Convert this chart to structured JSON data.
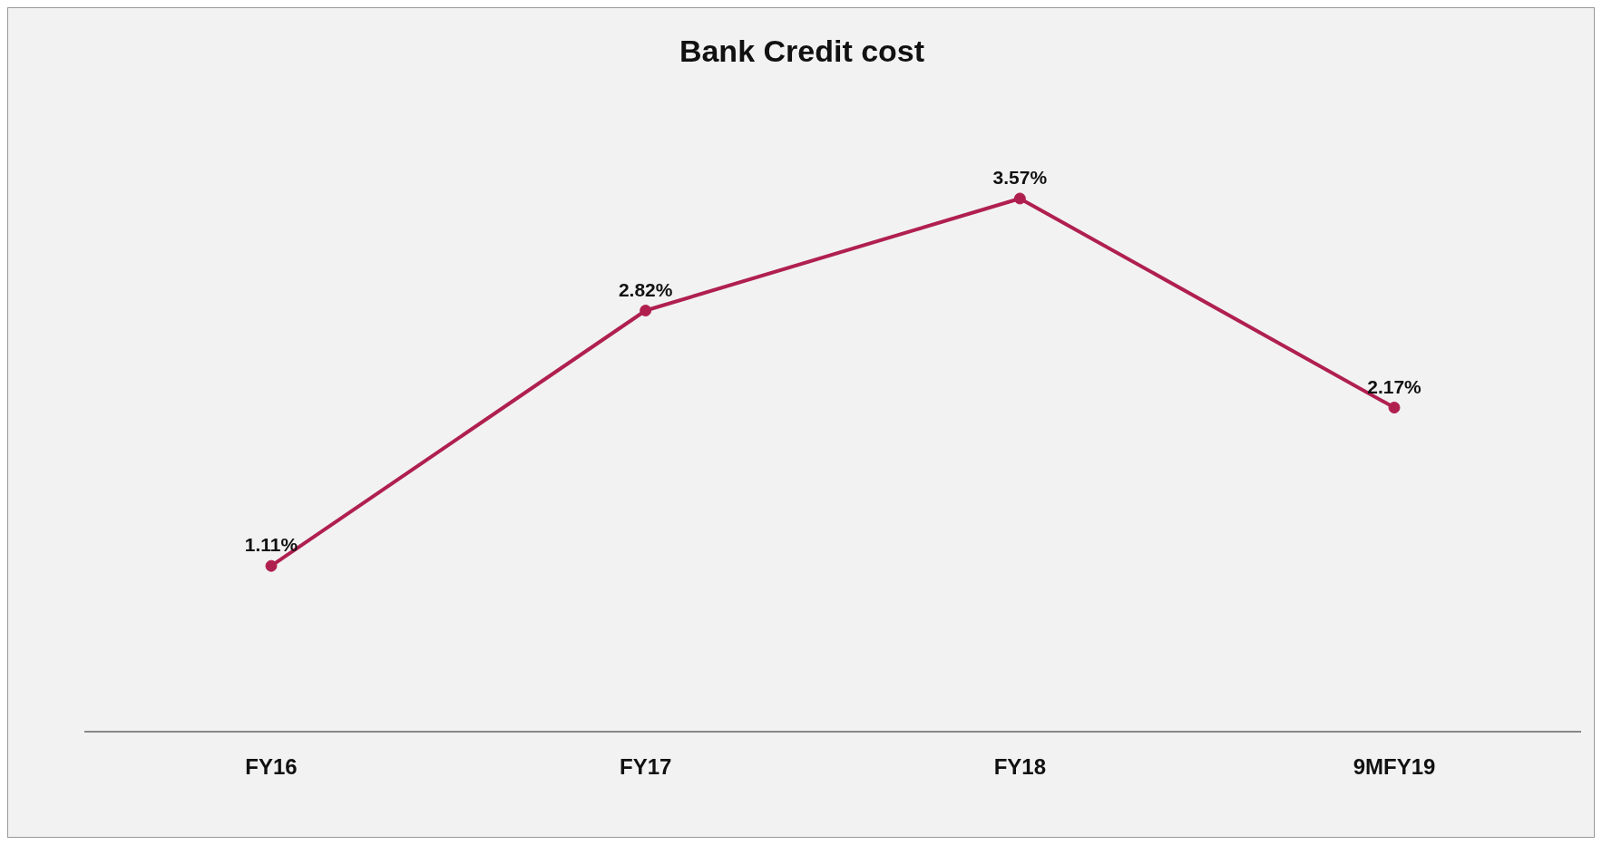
{
  "chart_data": {
    "type": "line",
    "title": "Bank Credit cost",
    "categories": [
      "FY16",
      "FY17",
      "FY18",
      "9MFY19"
    ],
    "series": [
      {
        "color": "#b0204f",
        "values": [
          1.11,
          2.82,
          3.57,
          2.17
        ],
        "value_labels": [
          "1.11%",
          "2.82%",
          "3.57%",
          "2.17%"
        ]
      }
    ],
    "marker": "circle",
    "grid": false,
    "legend": false
  }
}
